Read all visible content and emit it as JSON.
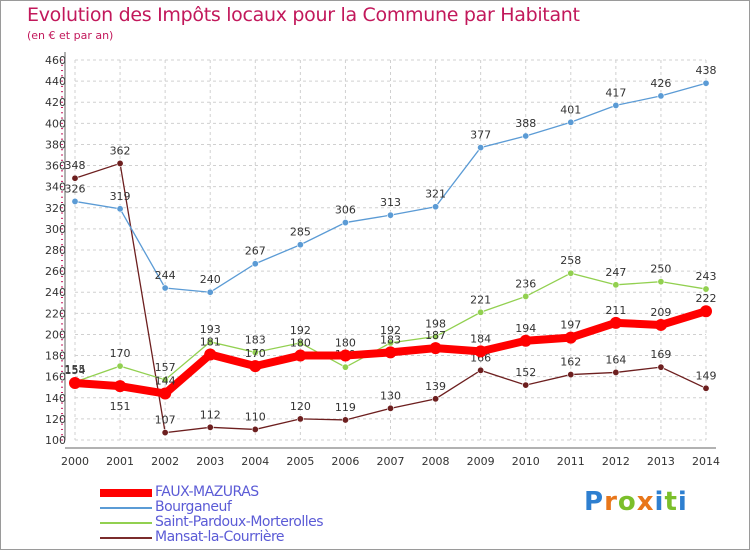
{
  "header": {
    "title": "Evolution des Impôts locaux pour la Commune par Habitant",
    "subtitle": "(en € et par an)"
  },
  "logo": {
    "text": "Proxiti",
    "letters": [
      "P",
      "r",
      "o",
      "x",
      "i",
      "t",
      "i"
    ],
    "colors": [
      "#2e7fd0",
      "#e8761a",
      "#7bbf2a",
      "#e8761a",
      "#2e7fd0",
      "#7bbf2a",
      "#2e7fd0"
    ]
  },
  "legend": {
    "items": [
      {
        "label": "FAUX-MAZURAS",
        "color": "#ff0000",
        "thick": true
      },
      {
        "label": "Bourganeuf",
        "color": "#5b9bd5",
        "thick": false
      },
      {
        "label": "Saint-Pardoux-Morterolles",
        "color": "#92d050",
        "thick": false
      },
      {
        "label": "Mansat-la-Courrière",
        "color": "#7b2c2c",
        "thick": false
      }
    ]
  },
  "chart_data": {
    "type": "line",
    "title": "Evolution des Impôts locaux pour la Commune par Habitant",
    "subtitle": "(en € et par an)",
    "x": [
      "2000",
      "2001",
      "2002",
      "2003",
      "2004",
      "2005",
      "2006",
      "2007",
      "2008",
      "2009",
      "2010",
      "2011",
      "2012",
      "2013",
      "2014"
    ],
    "ylim": [
      100,
      460
    ],
    "yticks": [
      100,
      120,
      140,
      160,
      180,
      200,
      220,
      240,
      260,
      280,
      300,
      320,
      340,
      360,
      380,
      400,
      420,
      440,
      460
    ],
    "grid": true,
    "legend_position": "bottom-left",
    "series": [
      {
        "name": "Mansat-la-Courrière",
        "color": "#6d1f1f",
        "values": [
          348,
          362,
          107,
          112,
          110,
          120,
          119,
          130,
          139,
          166,
          152,
          162,
          164,
          169,
          149
        ]
      },
      {
        "name": "Saint-Pardoux-Morterolles",
        "color": "#92d050",
        "values": [
          155,
          170,
          157,
          193,
          183,
          192,
          169,
          192,
          198,
          221,
          236,
          258,
          247,
          250,
          243
        ]
      },
      {
        "name": "Bourganeuf",
        "color": "#5b9bd5",
        "values": [
          326,
          319,
          244,
          240,
          267,
          285,
          306,
          313,
          321,
          377,
          388,
          401,
          417,
          426,
          438
        ]
      },
      {
        "name": "FAUX-MAZURAS",
        "color": "#ff0000",
        "values": [
          154,
          151,
          144,
          181,
          170,
          180,
          180,
          183,
          187,
          184,
          194,
          197,
          211,
          209,
          222
        ]
      }
    ]
  }
}
